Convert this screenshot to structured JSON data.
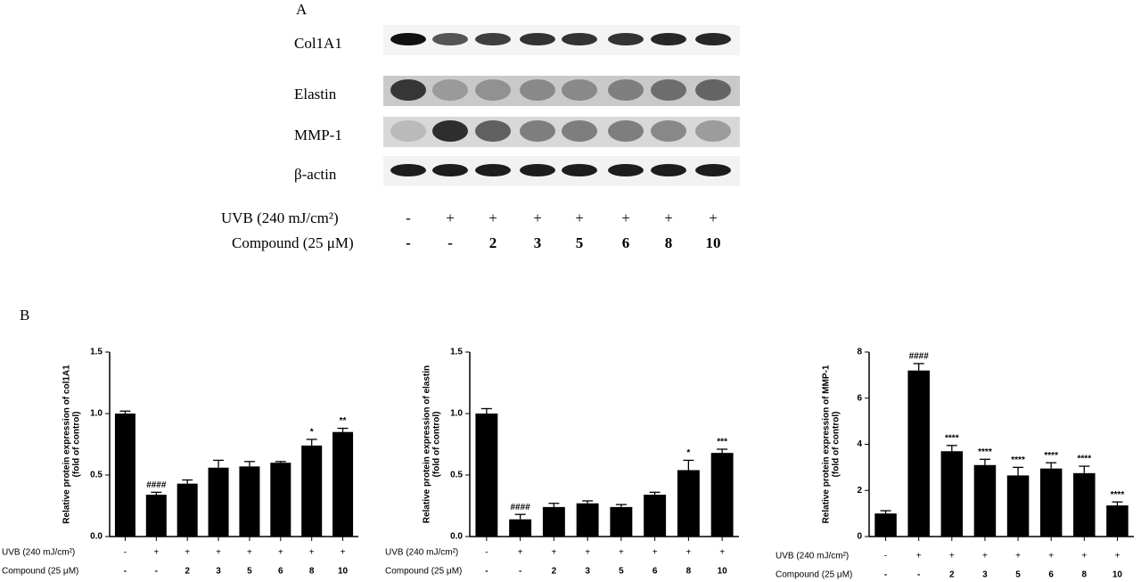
{
  "panel_a": {
    "label": "A",
    "blot_labels": [
      "Col1A1",
      "Elastin",
      "MMP-1",
      "β-actin"
    ],
    "row_labels": [
      "UVB (240 mJ/cm²)",
      "Compound (25 μM)"
    ],
    "rows": [
      [
        "-",
        "+",
        "+",
        "+",
        "+",
        "+",
        "+",
        "+"
      ],
      [
        "-",
        "-",
        "2",
        "3",
        "5",
        "6",
        "8",
        "10"
      ]
    ]
  },
  "panel_b": {
    "label": "B"
  },
  "chart_data": [
    {
      "type": "bar",
      "ylabel": [
        "Relative protein expression of col1A1",
        "(fold of control)"
      ],
      "row_labels": [
        "UVB (240 mJ/cm²)",
        "Compound (25 μM)"
      ],
      "rows": [
        [
          "-",
          "+",
          "+",
          "+",
          "+",
          "+",
          "+",
          "+"
        ],
        [
          "-",
          "-",
          "2",
          "3",
          "5",
          "6",
          "8",
          "10"
        ]
      ],
      "values": [
        1.0,
        0.34,
        0.43,
        0.56,
        0.57,
        0.6,
        0.74,
        0.85
      ],
      "errors": [
        0.02,
        0.02,
        0.03,
        0.06,
        0.04,
        0.01,
        0.05,
        0.03
      ],
      "annotations": [
        null,
        "####",
        null,
        null,
        null,
        null,
        "*",
        "**"
      ],
      "color": "#000000",
      "ylim": [
        0,
        1.5
      ],
      "yticks": [
        {
          "value": 0,
          "label": "0.0"
        },
        0.5,
        {
          "value": 1,
          "label": "1.0"
        },
        1.5
      ]
    },
    {
      "type": "bar",
      "ylabel": [
        "Relative protein expression of elastin",
        "(fold of control)"
      ],
      "row_labels": [
        "UVB (240 mJ/cm²)",
        "Compound (25 μM)"
      ],
      "rows": [
        [
          "-",
          "+",
          "+",
          "+",
          "+",
          "+",
          "+",
          "+"
        ],
        [
          "-",
          "-",
          "2",
          "3",
          "5",
          "6",
          "8",
          "10"
        ]
      ],
      "values": [
        1.0,
        0.14,
        0.24,
        0.27,
        0.24,
        0.34,
        0.54,
        0.68
      ],
      "errors": [
        0.04,
        0.04,
        0.03,
        0.02,
        0.02,
        0.02,
        0.08,
        0.03
      ],
      "annotations": [
        null,
        "####",
        null,
        null,
        null,
        null,
        "*",
        "***"
      ],
      "color": "#000000",
      "ylim": [
        0,
        1.5
      ],
      "yticks": [
        {
          "value": 0,
          "label": "0.0"
        },
        0.5,
        {
          "value": 1,
          "label": "1.0"
        },
        1.5
      ]
    },
    {
      "type": "bar",
      "ylabel": [
        "Relative protein expression of MMP-1",
        "(fold of control)"
      ],
      "row_labels": [
        "UVB (240 mJ/cm²)",
        "Compound (25 μM)"
      ],
      "rows": [
        [
          "-",
          "+",
          "+",
          "+",
          "+",
          "+",
          "+",
          "+"
        ],
        [
          "-",
          "-",
          "2",
          "3",
          "5",
          "6",
          "8",
          "10"
        ]
      ],
      "values": [
        1.0,
        7.2,
        3.7,
        3.1,
        2.65,
        2.95,
        2.75,
        1.35
      ],
      "errors": [
        0.12,
        0.3,
        0.25,
        0.25,
        0.35,
        0.25,
        0.3,
        0.15
      ],
      "annotations": [
        null,
        "####",
        "****",
        "****",
        "****",
        "****",
        "****",
        "****"
      ],
      "color": "#000000",
      "ylim": [
        0,
        8
      ],
      "yticks": [
        0,
        2,
        4,
        6,
        8
      ]
    }
  ]
}
